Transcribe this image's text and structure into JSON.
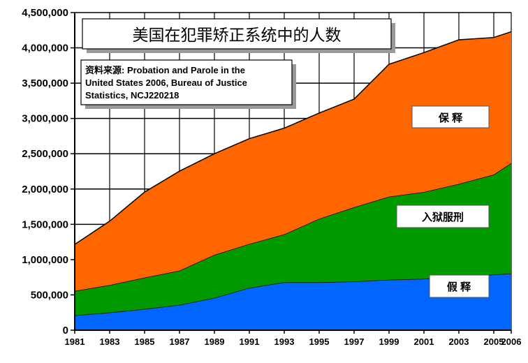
{
  "chart_data": {
    "type": "area",
    "stacked": true,
    "title": "美国在犯罪矫正系统中的人数",
    "source_note": [
      "资料来源: Probation and Parole in the",
      "United States 2006, Bureau of Justice",
      "Statistics, NCJ220218"
    ],
    "xlabel": "",
    "ylabel": "",
    "x": [
      1981,
      1983,
      1985,
      1987,
      1989,
      1991,
      1993,
      1995,
      1997,
      1999,
      2001,
      2003,
      2005,
      2006
    ],
    "x_tick_labels": [
      "1981",
      "1983",
      "1985",
      "1987",
      "1989",
      "1991",
      "1993",
      "1995",
      "1997",
      "1999",
      "2001",
      "2003",
      "2005",
      "2006"
    ],
    "ylim": [
      0,
      4500000
    ],
    "y_tick_labels": [
      "0",
      "500,000",
      "1,000,000",
      "1,500,000",
      "2,000,000",
      "2,500,000",
      "3,000,000",
      "3,500,000",
      "4,000,000",
      "4,500,000"
    ],
    "y_ticks": [
      0,
      500000,
      1000000,
      1500000,
      2000000,
      2500000,
      3000000,
      3500000,
      4000000,
      4500000
    ],
    "grid": true,
    "series": [
      {
        "name": "假 释",
        "color": "#0066FF",
        "values": [
          210000,
          250000,
          300000,
          359000,
          458000,
          600000,
          679000,
          679000,
          690000,
          714000,
          728000,
          771000,
          787000,
          803000
        ]
      },
      {
        "name": "入狱服刑",
        "color": "#009900",
        "values": [
          346000,
          389000,
          444000,
          484000,
          609000,
          622000,
          678000,
          899000,
          1052000,
          1177000,
          1229000,
          1301000,
          1417000,
          1565000
        ]
      },
      {
        "name": "保 释",
        "color": "#FF6600",
        "values": [
          659000,
          906000,
          1213000,
          1410000,
          1433000,
          1492000,
          1506000,
          1498000,
          1532000,
          1877000,
          1976000,
          2042000,
          1943000,
          1861000
        ]
      }
    ],
    "legend_placement": "inline-right"
  }
}
